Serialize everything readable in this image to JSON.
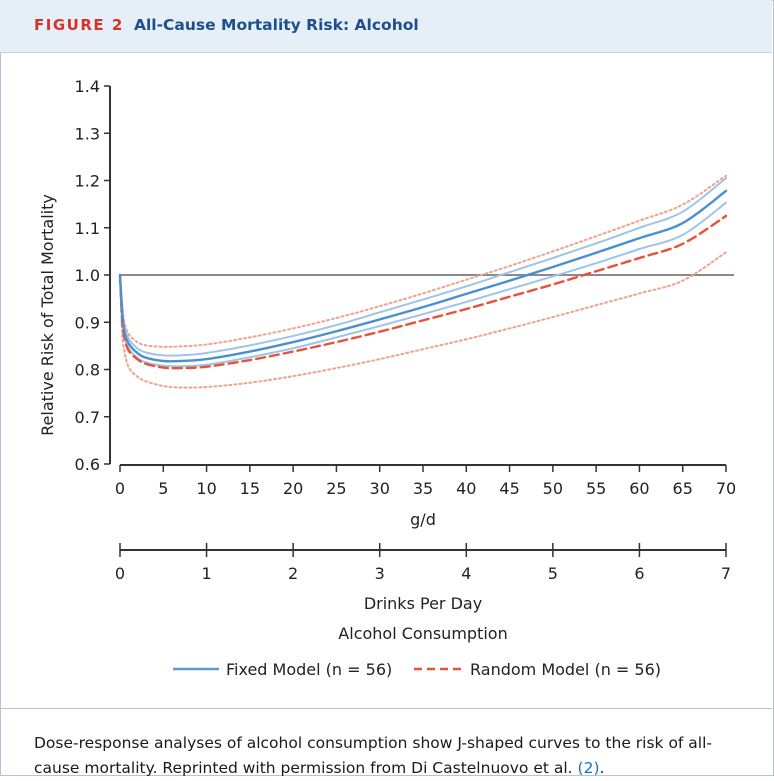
{
  "figure": {
    "label": "FIGURE 2",
    "title": "All-Cause Mortality Risk: Alcohol"
  },
  "caption": {
    "text": "Dose-response analyses of alcohol consumption show J-shaped curves to the risk of all-cause mortality. Reprinted with permission from Di Castelnuovo et al.",
    "ref": "(2)",
    "tail": "."
  },
  "chart_data": {
    "type": "line",
    "ylabel": "Relative Risk of Total Mortality",
    "xlabel": "g/d",
    "xlabel2": "Drinks Per Day",
    "xlabel3": "Alcohol Consumption",
    "xlim": [
      0,
      70
    ],
    "ylim": [
      0.6,
      1.4
    ],
    "yticks": [
      "0.6",
      "0.7",
      "0.8",
      "0.9",
      "1.0",
      "1.1",
      "1.2",
      "1.3",
      "1.4"
    ],
    "xticks": [
      "0",
      "5",
      "10",
      "15",
      "20",
      "25",
      "30",
      "35",
      "40",
      "45",
      "50",
      "55",
      "60",
      "65",
      "70"
    ],
    "x2ticks": [
      "0",
      "1",
      "2",
      "3",
      "4",
      "5",
      "6",
      "7"
    ],
    "reference_line": 1.0,
    "legend": [
      {
        "name": "Fixed Model (n = 56)",
        "color": "#5b9bd5",
        "style": "solid"
      },
      {
        "name": "Random Model (n = 56)",
        "color": "#e8513a",
        "style": "dashed"
      }
    ],
    "x": [
      0,
      0.25,
      0.5,
      1,
      2,
      3,
      5,
      7,
      10,
      15,
      20,
      25,
      30,
      35,
      40,
      45,
      50,
      55,
      60,
      65,
      70
    ],
    "series": [
      {
        "role": "fixed",
        "values": [
          1.0,
          0.92,
          0.88,
          0.855,
          0.835,
          0.825,
          0.818,
          0.818,
          0.822,
          0.838,
          0.858,
          0.881,
          0.906,
          0.932,
          0.96,
          0.988,
          1.017,
          1.047,
          1.078,
          1.11,
          1.178
        ],
        "color": "#4a90d0",
        "width": 2.4,
        "dash": ""
      },
      {
        "role": "fixed-upper",
        "values": [
          1.0,
          0.93,
          0.895,
          0.865,
          0.845,
          0.836,
          0.83,
          0.83,
          0.835,
          0.851,
          0.871,
          0.894,
          0.921,
          0.948,
          0.976,
          1.006,
          1.036,
          1.067,
          1.1,
          1.134,
          1.205
        ],
        "color": "#9ec5e8",
        "width": 2,
        "dash": ""
      },
      {
        "role": "fixed-lower",
        "values": [
          1.0,
          0.91,
          0.872,
          0.845,
          0.825,
          0.815,
          0.808,
          0.807,
          0.81,
          0.826,
          0.845,
          0.868,
          0.892,
          0.917,
          0.943,
          0.97,
          0.997,
          1.025,
          1.055,
          1.085,
          1.153
        ],
        "color": "#9ec5e8",
        "width": 2,
        "dash": ""
      },
      {
        "role": "random",
        "values": [
          1.0,
          0.905,
          0.868,
          0.84,
          0.822,
          0.812,
          0.804,
          0.803,
          0.806,
          0.82,
          0.838,
          0.858,
          0.88,
          0.904,
          0.928,
          0.954,
          0.98,
          1.008,
          1.036,
          1.066,
          1.125
        ],
        "color": "#e8513a",
        "width": 2.4,
        "dash": "9 5"
      },
      {
        "role": "random-upper",
        "values": [
          1.0,
          0.94,
          0.9,
          0.875,
          0.858,
          0.851,
          0.848,
          0.849,
          0.853,
          0.868,
          0.887,
          0.909,
          0.934,
          0.961,
          0.99,
          1.019,
          1.05,
          1.082,
          1.115,
          1.149,
          1.21
        ],
        "color": "#f0a28f",
        "width": 2,
        "dash": "2 3"
      },
      {
        "role": "random-lower",
        "values": [
          1.0,
          0.88,
          0.84,
          0.805,
          0.785,
          0.775,
          0.765,
          0.762,
          0.763,
          0.772,
          0.786,
          0.803,
          0.822,
          0.843,
          0.864,
          0.887,
          0.911,
          0.936,
          0.961,
          0.988,
          1.048
        ],
        "color": "#f0a28f",
        "width": 2,
        "dash": "2 3"
      }
    ]
  }
}
